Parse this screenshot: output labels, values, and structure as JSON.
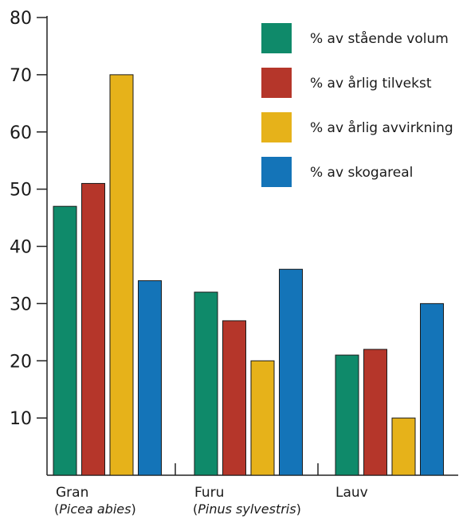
{
  "chart_data": {
    "type": "bar",
    "title": "",
    "xlabel": "",
    "ylabel": "",
    "ylim": [
      0,
      80
    ],
    "yticks": [
      10,
      20,
      30,
      40,
      50,
      60,
      70,
      80
    ],
    "grid": false,
    "legend_position": "top-right",
    "categories": [
      "Gran",
      "Furu",
      "Lauv"
    ],
    "category_sublabels": [
      {
        "open": "(",
        "italic": "Picea abies",
        "close": ")"
      },
      {
        "open": "(",
        "italic": "Pinus sylvestris",
        "close": ")"
      },
      null
    ],
    "series": [
      {
        "name": "% av stående volum",
        "color": "#0f8a6a",
        "values": [
          47,
          32,
          21
        ]
      },
      {
        "name": "% av årlig tilvekst",
        "color": "#b5362a",
        "values": [
          51,
          27,
          22
        ]
      },
      {
        "name": "% av årlig avvirkning",
        "color": "#e6b21a",
        "values": [
          70,
          20,
          10
        ]
      },
      {
        "name": "% av skogareal",
        "color": "#1474b8",
        "values": [
          34,
          36,
          30
        ]
      }
    ]
  }
}
